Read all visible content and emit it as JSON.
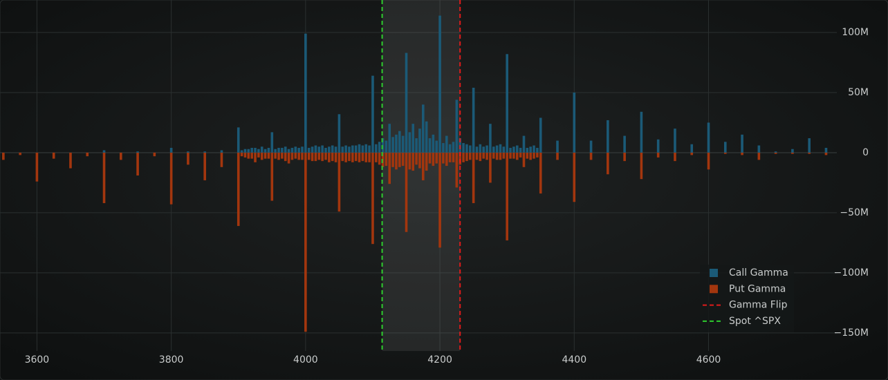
{
  "chart_data": {
    "type": "bar",
    "x": [
      3550,
      3575,
      3600,
      3625,
      3650,
      3675,
      3700,
      3725,
      3750,
      3775,
      3800,
      3825,
      3850,
      3875,
      3900,
      3905,
      3910,
      3915,
      3920,
      3925,
      3930,
      3935,
      3940,
      3945,
      3950,
      3955,
      3960,
      3965,
      3970,
      3975,
      3980,
      3985,
      3990,
      3995,
      4000,
      4005,
      4010,
      4015,
      4020,
      4025,
      4030,
      4035,
      4040,
      4045,
      4050,
      4055,
      4060,
      4065,
      4070,
      4075,
      4080,
      4085,
      4090,
      4095,
      4100,
      4105,
      4110,
      4115,
      4120,
      4125,
      4130,
      4135,
      4140,
      4145,
      4150,
      4155,
      4160,
      4165,
      4170,
      4175,
      4180,
      4185,
      4190,
      4195,
      4200,
      4205,
      4210,
      4215,
      4220,
      4225,
      4230,
      4235,
      4240,
      4245,
      4250,
      4255,
      4260,
      4265,
      4270,
      4275,
      4280,
      4285,
      4290,
      4295,
      4300,
      4305,
      4310,
      4315,
      4320,
      4325,
      4330,
      4335,
      4340,
      4345,
      4350,
      4375,
      4400,
      4425,
      4450,
      4475,
      4500,
      4525,
      4550,
      4575,
      4600,
      4625,
      4650,
      4675,
      4700,
      4725,
      4750,
      4775
    ],
    "series": [
      {
        "name": "Call Gamma",
        "color": "#1b5a77",
        "values": [
          0,
          0,
          0,
          0,
          0,
          0,
          2,
          0,
          1,
          0,
          4,
          1,
          1,
          2,
          21,
          2,
          3,
          3,
          4,
          4,
          3,
          5,
          3,
          4,
          17,
          3,
          4,
          4,
          5,
          3,
          4,
          5,
          4,
          5,
          99,
          4,
          5,
          6,
          5,
          6,
          4,
          5,
          6,
          5,
          32,
          5,
          6,
          5,
          6,
          6,
          7,
          6,
          7,
          6,
          64,
          7,
          9,
          12,
          10,
          24,
          13,
          15,
          18,
          14,
          83,
          17,
          24,
          12,
          20,
          40,
          26,
          12,
          15,
          10,
          114,
          8,
          14,
          7,
          9,
          44,
          12,
          8,
          7,
          6,
          54,
          5,
          7,
          5,
          6,
          24,
          5,
          6,
          7,
          5,
          82,
          4,
          5,
          6,
          4,
          14,
          4,
          5,
          6,
          4,
          29,
          10,
          50,
          10,
          27,
          14,
          34,
          11,
          20,
          7,
          25,
          9,
          15,
          6,
          1,
          3,
          12,
          4
        ]
      },
      {
        "name": "Put Gamma",
        "color": "#a3360e",
        "values": [
          -6,
          -2,
          -24,
          -5,
          -13,
          -3,
          -42,
          -6,
          -19,
          -3,
          -43,
          -10,
          -23,
          -12,
          -61,
          -3,
          -4,
          -5,
          -5,
          -8,
          -4,
          -6,
          -5,
          -5,
          -40,
          -5,
          -6,
          -5,
          -7,
          -9,
          -6,
          -5,
          -6,
          -6,
          -149,
          -6,
          -7,
          -7,
          -6,
          -7,
          -6,
          -8,
          -7,
          -8,
          -49,
          -7,
          -8,
          -7,
          -8,
          -7,
          -8,
          -7,
          -8,
          -8,
          -76,
          -8,
          -10,
          -12,
          -11,
          -26,
          -12,
          -14,
          -12,
          -11,
          -66,
          -14,
          -15,
          -10,
          -13,
          -23,
          -15,
          -9,
          -11,
          -9,
          -79,
          -9,
          -11,
          -8,
          -8,
          -29,
          -10,
          -8,
          -7,
          -6,
          -42,
          -6,
          -7,
          -5,
          -6,
          -25,
          -5,
          -6,
          -6,
          -5,
          -73,
          -5,
          -5,
          -6,
          -4,
          -12,
          -5,
          -6,
          -5,
          -4,
          -34,
          -6,
          -41,
          -6,
          -18,
          -7,
          -22,
          -4,
          -7,
          -2,
          -14,
          -1,
          -2,
          -6,
          -1,
          -1,
          -1,
          -2
        ]
      }
    ],
    "lines": [
      {
        "name": "Gamma Flip",
        "color": "#e01b1b",
        "x": 4230
      },
      {
        "name": "Spot ^SPX",
        "color": "#2ecc2e",
        "x": 4114
      }
    ],
    "xlim": [
      3545,
      4791
    ],
    "xticks": [
      3600,
      3800,
      4000,
      4200,
      4400,
      4600
    ],
    "ylim": [
      -165,
      127
    ],
    "yticks": [
      {
        "value": 100,
        "label": "100M"
      },
      {
        "value": 50,
        "label": "50M"
      },
      0,
      {
        "value": -50,
        "label": "−50M"
      },
      {
        "value": -100,
        "label": "−100M"
      },
      {
        "value": -150,
        "label": "−150M"
      }
    ],
    "grid": true,
    "legend": "lower right"
  }
}
